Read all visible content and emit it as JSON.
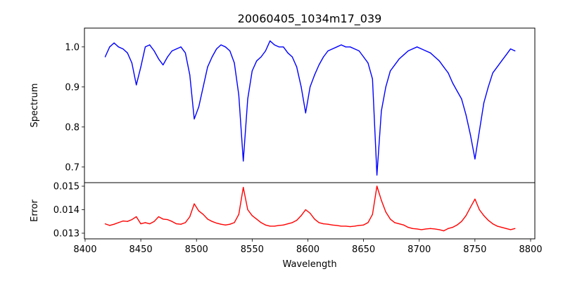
{
  "chart_data": [
    {
      "type": "line",
      "title": "20060405_1034m17_039",
      "xlabel": "",
      "ylabel": "Spectrum",
      "xlim": [
        8399.4,
        8803.8
      ],
      "ylim": [
        0.661,
        1.047
      ],
      "yticks": [
        "0.7",
        "0.8",
        "0.9",
        "1.0"
      ],
      "ytick_values": [
        0.7,
        0.8,
        0.9,
        1.0
      ],
      "grid": false,
      "color": "#0000ff",
      "x": [
        8418,
        8422,
        8426,
        8430,
        8434,
        8438,
        8442,
        8446,
        8450,
        8454,
        8458,
        8462,
        8466,
        8470,
        8474,
        8478,
        8482,
        8486,
        8490,
        8494,
        8498,
        8502,
        8506,
        8510,
        8514,
        8518,
        8522,
        8526,
        8530,
        8534,
        8538,
        8542,
        8546,
        8550,
        8554,
        8558,
        8562,
        8566,
        8570,
        8574,
        8578,
        8582,
        8586,
        8590,
        8594,
        8598,
        8602,
        8606,
        8610,
        8614,
        8618,
        8622,
        8626,
        8630,
        8634,
        8638,
        8642,
        8646,
        8650,
        8654,
        8658,
        8662,
        8666,
        8670,
        8674,
        8678,
        8682,
        8686,
        8690,
        8694,
        8698,
        8702,
        8706,
        8710,
        8714,
        8718,
        8722,
        8726,
        8730,
        8734,
        8738,
        8742,
        8746,
        8750,
        8754,
        8758,
        8762,
        8766,
        8770,
        8774,
        8778,
        8782,
        8786
      ],
      "values": [
        0.975,
        1.0,
        1.01,
        1.0,
        0.995,
        0.985,
        0.96,
        0.905,
        0.95,
        1.0,
        1.005,
        0.99,
        0.97,
        0.955,
        0.975,
        0.99,
        0.995,
        1.0,
        0.985,
        0.93,
        0.82,
        0.85,
        0.9,
        0.95,
        0.975,
        0.995,
        1.005,
        1.0,
        0.99,
        0.96,
        0.88,
        0.715,
        0.87,
        0.94,
        0.965,
        0.975,
        0.99,
        1.015,
        1.005,
        1.0,
        1.0,
        0.985,
        0.975,
        0.95,
        0.9,
        0.835,
        0.9,
        0.93,
        0.955,
        0.975,
        0.99,
        0.995,
        1.0,
        1.005,
        1.0,
        1.0,
        0.995,
        0.99,
        0.975,
        0.96,
        0.92,
        0.68,
        0.84,
        0.9,
        0.94,
        0.955,
        0.97,
        0.98,
        0.99,
        0.995,
        1.0,
        0.995,
        0.99,
        0.985,
        0.975,
        0.965,
        0.95,
        0.935,
        0.91,
        0.89,
        0.87,
        0.83,
        0.78,
        0.72,
        0.79,
        0.86,
        0.9,
        0.935,
        0.95,
        0.965,
        0.98,
        0.995,
        0.99
      ]
    },
    {
      "type": "line",
      "title": "",
      "xlabel": "Wavelength",
      "ylabel": "Error",
      "xlim": [
        8399.4,
        8803.8
      ],
      "ylim": [
        0.01276,
        0.01515
      ],
      "xticks": [
        "8400",
        "8450",
        "8500",
        "8550",
        "8600",
        "8650",
        "8700",
        "8750",
        "8800"
      ],
      "xtick_values": [
        8400,
        8450,
        8500,
        8550,
        8600,
        8650,
        8700,
        8750,
        8800
      ],
      "yticks": [
        "0.013",
        "0.014",
        "0.015"
      ],
      "ytick_values": [
        0.013,
        0.014,
        0.015
      ],
      "grid": false,
      "color": "#ff0000",
      "x": [
        8418,
        8422,
        8426,
        8430,
        8434,
        8438,
        8442,
        8446,
        8450,
        8454,
        8458,
        8462,
        8466,
        8470,
        8474,
        8478,
        8482,
        8486,
        8490,
        8494,
        8498,
        8502,
        8506,
        8510,
        8514,
        8518,
        8522,
        8526,
        8530,
        8534,
        8538,
        8542,
        8546,
        8550,
        8554,
        8558,
        8562,
        8566,
        8570,
        8574,
        8578,
        8582,
        8586,
        8590,
        8594,
        8598,
        8602,
        8606,
        8610,
        8614,
        8618,
        8622,
        8626,
        8630,
        8634,
        8638,
        8642,
        8646,
        8650,
        8654,
        8658,
        8662,
        8666,
        8670,
        8674,
        8678,
        8682,
        8686,
        8690,
        8694,
        8698,
        8702,
        8706,
        8710,
        8714,
        8718,
        8722,
        8726,
        8730,
        8734,
        8738,
        8742,
        8746,
        8750,
        8754,
        8758,
        8762,
        8766,
        8770,
        8774,
        8778,
        8782,
        8786
      ],
      "values": [
        0.0134,
        0.01333,
        0.01338,
        0.01345,
        0.01352,
        0.0135,
        0.01358,
        0.0137,
        0.0134,
        0.01345,
        0.0134,
        0.0135,
        0.0137,
        0.0136,
        0.01358,
        0.0135,
        0.0134,
        0.01338,
        0.01345,
        0.0137,
        0.01425,
        0.01395,
        0.0138,
        0.0136,
        0.0135,
        0.01343,
        0.01338,
        0.01335,
        0.01338,
        0.01345,
        0.0138,
        0.01495,
        0.014,
        0.01375,
        0.0136,
        0.01345,
        0.01335,
        0.0133,
        0.0133,
        0.01333,
        0.01335,
        0.0134,
        0.01345,
        0.01355,
        0.01375,
        0.014,
        0.01385,
        0.0136,
        0.01345,
        0.0134,
        0.01338,
        0.01335,
        0.01333,
        0.0133,
        0.0133,
        0.01328,
        0.0133,
        0.01333,
        0.01335,
        0.01345,
        0.0138,
        0.015,
        0.0144,
        0.0139,
        0.0136,
        0.01345,
        0.0134,
        0.01335,
        0.01325,
        0.0132,
        0.01318,
        0.01315,
        0.01318,
        0.0132,
        0.01318,
        0.01315,
        0.0131,
        0.0132,
        0.01325,
        0.01335,
        0.0135,
        0.01375,
        0.0141,
        0.01445,
        0.014,
        0.01375,
        0.01355,
        0.0134,
        0.0133,
        0.01325,
        0.0132,
        0.01315,
        0.0132
      ]
    }
  ]
}
